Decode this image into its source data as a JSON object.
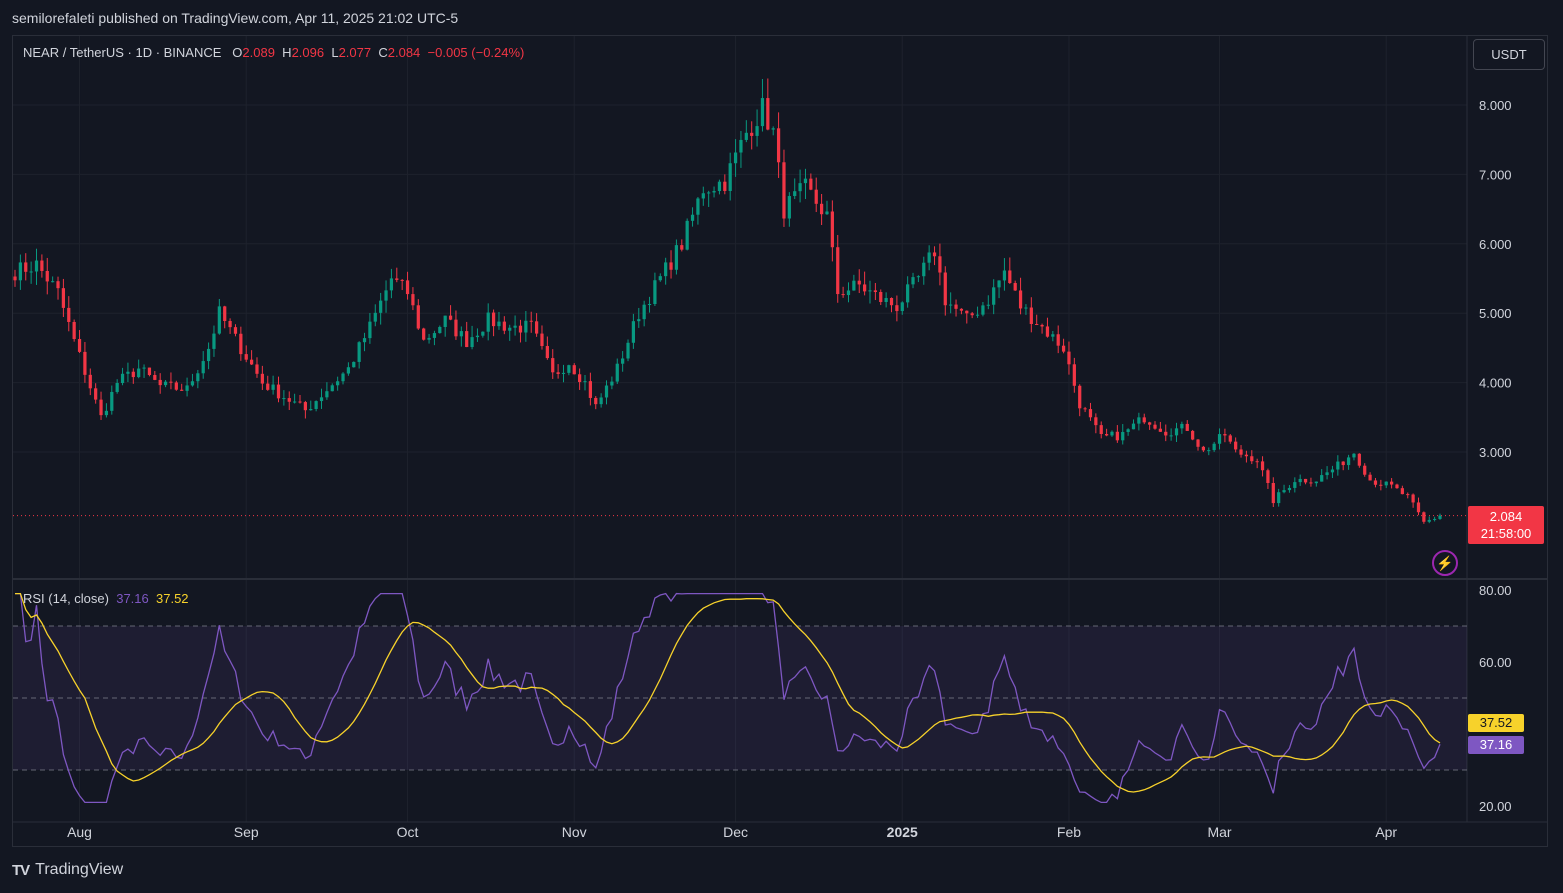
{
  "header": {
    "text": "semilorefaleti published on TradingView.com, Apr 11, 2025 21:02 UTC-5"
  },
  "legend": {
    "symbol": "NEAR / TetherUS · 1D · BINANCE",
    "o_label": "O",
    "o_value": "2.089",
    "h_label": "H",
    "h_value": "2.096",
    "l_label": "L",
    "l_value": "2.077",
    "c_label": "C",
    "c_value": "2.084",
    "change": "−0.005 (−0.24%)"
  },
  "currency_button": "USDT",
  "price_tag": {
    "price": "2.084",
    "countdown": "21:58:00"
  },
  "rsi": {
    "label": "RSI (14, close)",
    "rsi_value": "37.16",
    "ma_value": "37.52"
  },
  "footer": {
    "brand": "TradingView",
    "logo": "TV"
  },
  "colors": {
    "up": "#089981",
    "down": "#f23645",
    "rsi": "#7e57c2",
    "rsi_ma": "#f7d22b",
    "bg": "#131722"
  },
  "chart_data": [
    {
      "type": "candlestick",
      "price_ticks": [
        "8.000",
        "7.000",
        "6.000",
        "5.000",
        "4.000",
        "3.000"
      ],
      "price_tick_values": [
        8,
        7,
        6,
        5,
        4,
        3
      ],
      "ylim": [
        1.5,
        8.5
      ],
      "x_labels": [
        "Aug",
        "Sep",
        "Oct",
        "Nov",
        "Dec",
        "2025",
        "Feb",
        "Mar",
        "Apr"
      ],
      "x_label_dates": [
        "2024-08-01",
        "2024-09-01",
        "2024-10-01",
        "2024-11-01",
        "2024-12-01",
        "2025-01-01",
        "2025-02-01",
        "2025-03-01",
        "2025-04-01"
      ],
      "start_date": "2024-07-20",
      "end_date": "2025-04-11",
      "last_close": 2.084,
      "anchors": [
        [
          "2024-07-20",
          5.6
        ],
        [
          "2024-07-24",
          5.7
        ],
        [
          "2024-07-28",
          5.3
        ],
        [
          "2024-07-31",
          4.6
        ],
        [
          "2024-08-05",
          3.5
        ],
        [
          "2024-08-08",
          4.0
        ],
        [
          "2024-08-12",
          4.2
        ],
        [
          "2024-08-16",
          3.95
        ],
        [
          "2024-08-21",
          3.9
        ],
        [
          "2024-08-25",
          4.5
        ],
        [
          "2024-08-27",
          5.0
        ],
        [
          "2024-08-31",
          4.5
        ],
        [
          "2024-09-04",
          4.0
        ],
        [
          "2024-09-08",
          3.8
        ],
        [
          "2024-09-12",
          3.6
        ],
        [
          "2024-09-16",
          3.9
        ],
        [
          "2024-09-20",
          4.2
        ],
        [
          "2024-09-24",
          4.8
        ],
        [
          "2024-09-28",
          5.5
        ],
        [
          "2024-10-01",
          5.3
        ],
        [
          "2024-10-04",
          4.6
        ],
        [
          "2024-10-08",
          4.9
        ],
        [
          "2024-10-12",
          4.6
        ],
        [
          "2024-10-16",
          4.9
        ],
        [
          "2024-10-20",
          4.8
        ],
        [
          "2024-10-24",
          4.8
        ],
        [
          "2024-10-28",
          4.1
        ],
        [
          "2024-10-31",
          4.3
        ],
        [
          "2024-11-03",
          4.0
        ],
        [
          "2024-11-05",
          3.65
        ],
        [
          "2024-11-09",
          4.2
        ],
        [
          "2024-11-13",
          5.0
        ],
        [
          "2024-11-17",
          5.5
        ],
        [
          "2024-11-21",
          6.0
        ],
        [
          "2024-11-25",
          6.8
        ],
        [
          "2024-11-29",
          6.9
        ],
        [
          "2024-12-03",
          7.6
        ],
        [
          "2024-12-06",
          7.95
        ],
        [
          "2024-12-08",
          7.6
        ],
        [
          "2024-12-10",
          6.5
        ],
        [
          "2024-12-14",
          6.8
        ],
        [
          "2024-12-18",
          6.4
        ],
        [
          "2024-12-20",
          5.3
        ],
        [
          "2024-12-24",
          5.4
        ],
        [
          "2024-12-28",
          5.2
        ],
        [
          "2024-12-31",
          5.1
        ],
        [
          "2025-01-04",
          5.5
        ],
        [
          "2025-01-07",
          5.9
        ],
        [
          "2025-01-09",
          5.2
        ],
        [
          "2025-01-13",
          4.9
        ],
        [
          "2025-01-17",
          5.2
        ],
        [
          "2025-01-20",
          5.6
        ],
        [
          "2025-01-23",
          5.1
        ],
        [
          "2025-01-27",
          4.8
        ],
        [
          "2025-01-31",
          4.5
        ],
        [
          "2025-02-03",
          3.7
        ],
        [
          "2025-02-07",
          3.2
        ],
        [
          "2025-02-11",
          3.25
        ],
        [
          "2025-02-15",
          3.5
        ],
        [
          "2025-02-19",
          3.3
        ],
        [
          "2025-02-23",
          3.35
        ],
        [
          "2025-02-26",
          3.0
        ],
        [
          "2025-03-02",
          3.25
        ],
        [
          "2025-03-04",
          3.0
        ],
        [
          "2025-03-08",
          2.9
        ],
        [
          "2025-03-11",
          2.3
        ],
        [
          "2025-03-15",
          2.6
        ],
        [
          "2025-03-19",
          2.6
        ],
        [
          "2025-03-23",
          2.8
        ],
        [
          "2025-03-26",
          3.0
        ],
        [
          "2025-03-29",
          2.6
        ],
        [
          "2025-04-02",
          2.5
        ],
        [
          "2025-04-05",
          2.35
        ],
        [
          "2025-04-08",
          1.98
        ],
        [
          "2025-04-11",
          2.084
        ]
      ]
    },
    {
      "type": "line",
      "name": "RSI (14, close)",
      "yticks": [
        "80.00",
        "60.00",
        "20.00"
      ],
      "ytick_values": [
        80,
        60,
        20
      ],
      "bands": [
        70,
        50,
        30
      ],
      "ylim": [
        20,
        80
      ],
      "series_rsi_last": 37.16,
      "series_ma_last": 37.52
    }
  ]
}
